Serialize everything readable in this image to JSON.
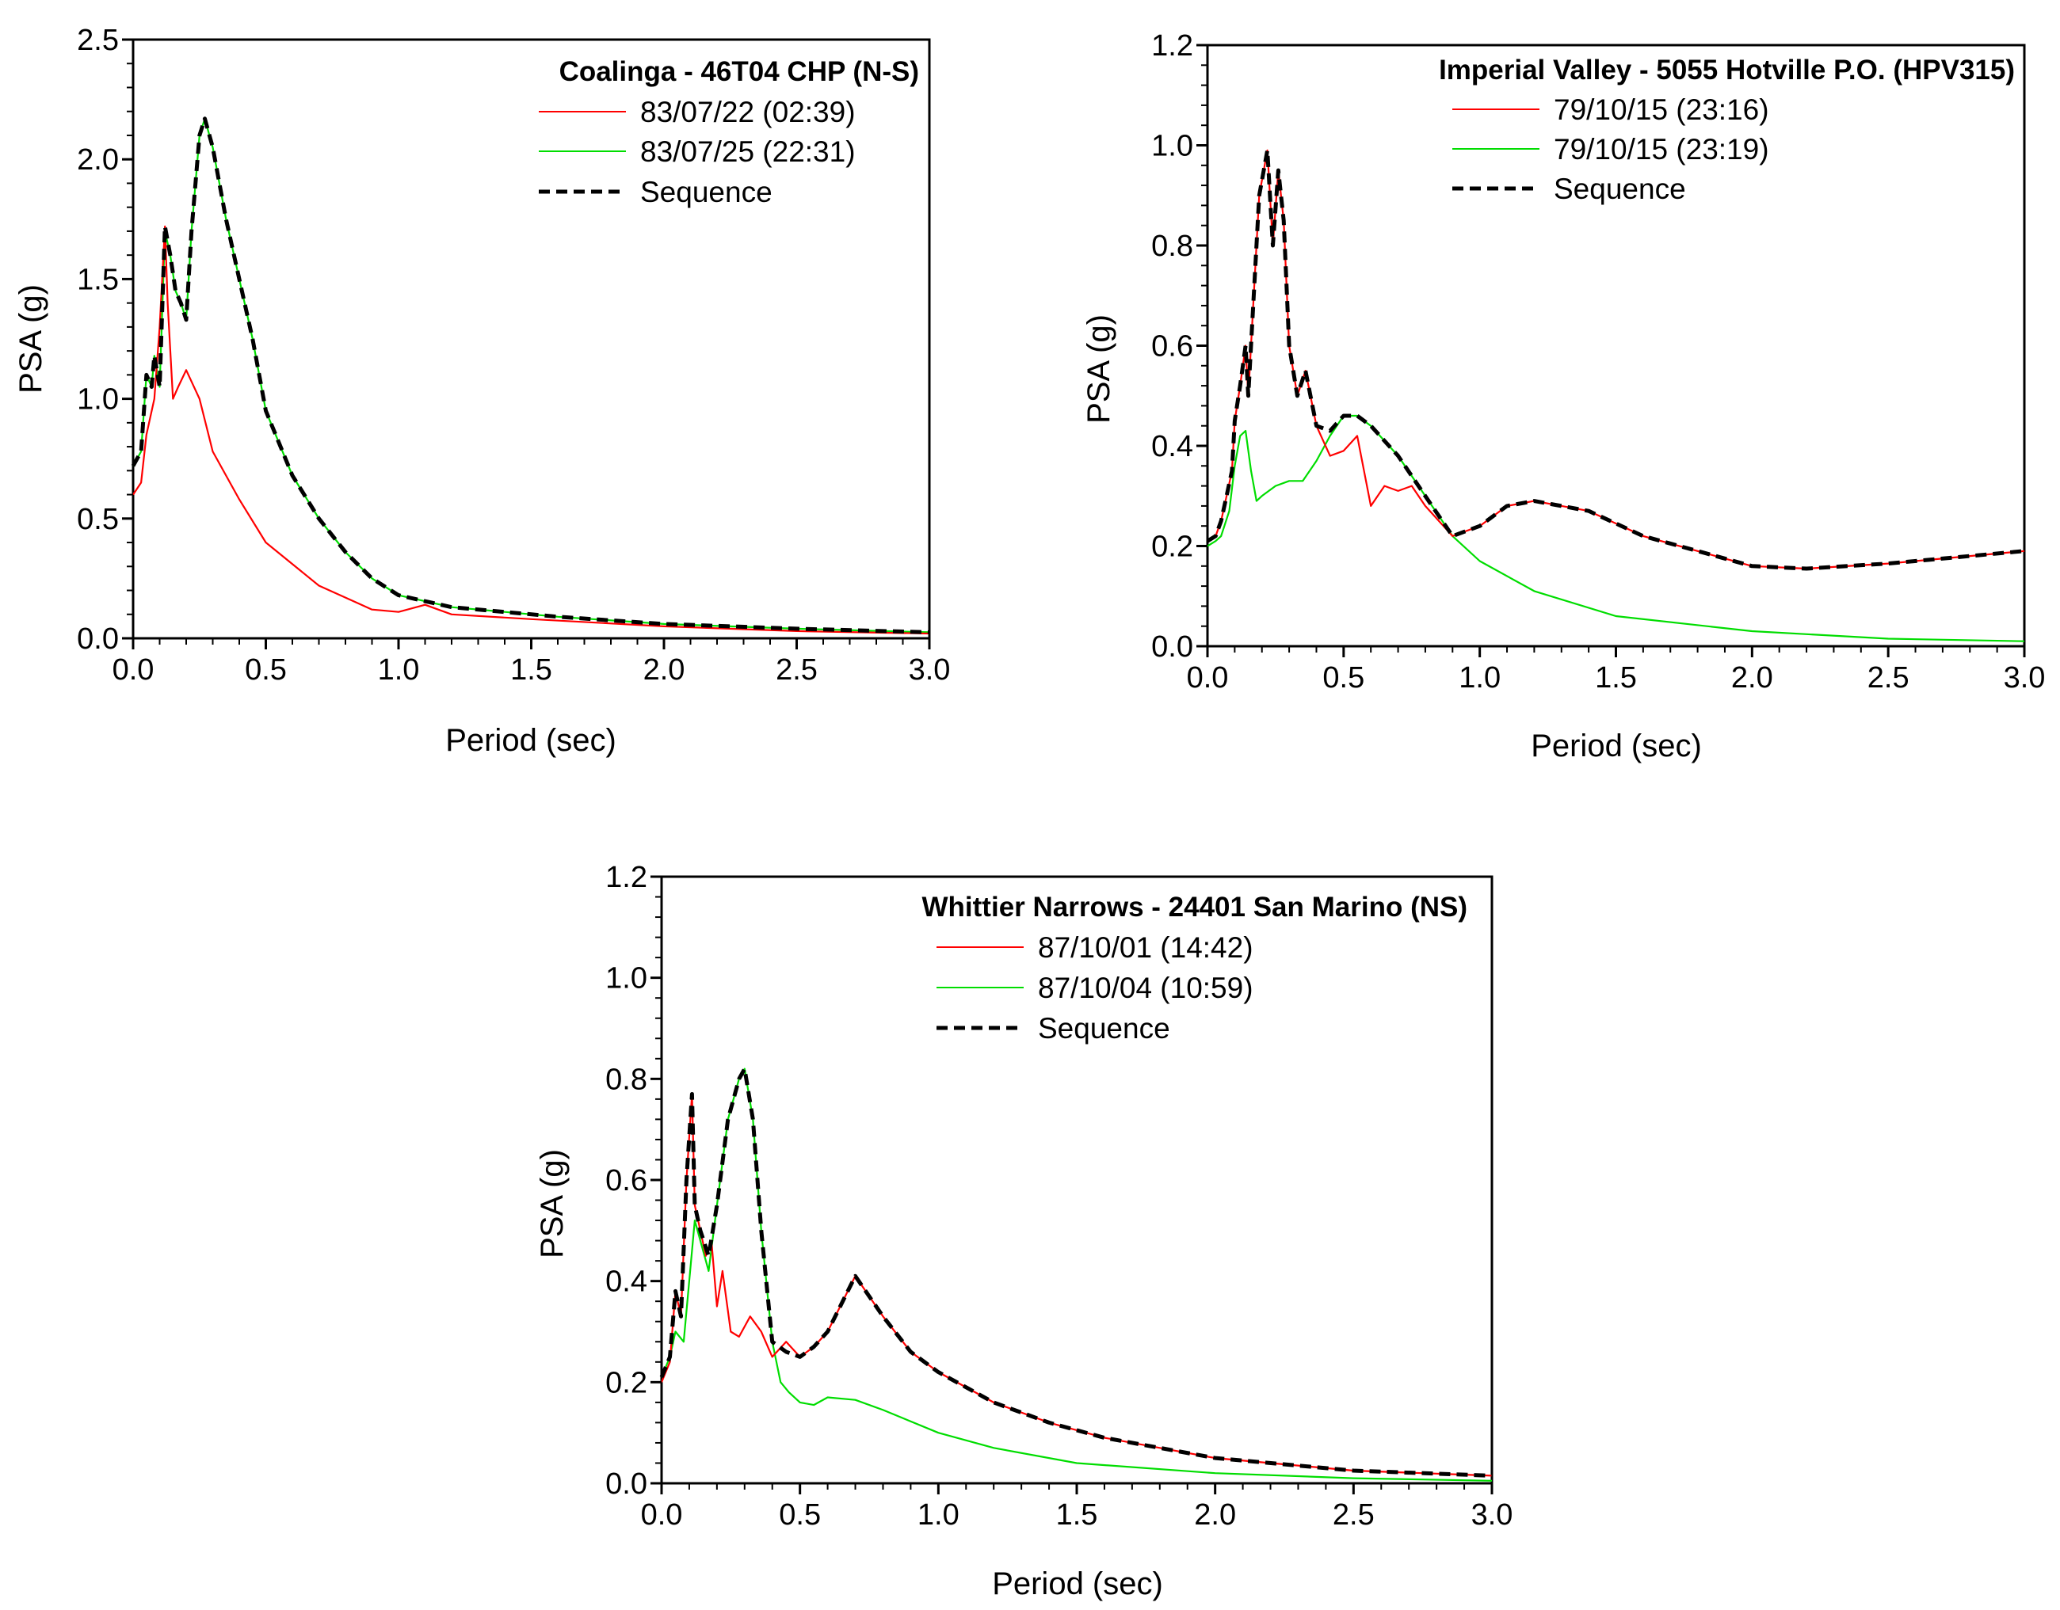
{
  "chart_data": [
    {
      "type": "line",
      "title": "Coalinga - 46T04 CHP (N-S)",
      "xlabel": "Period (sec)",
      "ylabel": "PSA (g)",
      "xlim": [
        0,
        3.0
      ],
      "ylim": [
        0,
        2.5
      ],
      "xticks": [
        "0.0",
        "0.5",
        "1.0",
        "1.5",
        "2.0",
        "2.5",
        "3.0"
      ],
      "yticks": [
        "0.0",
        "0.5",
        "1.0",
        "1.5",
        "2.0",
        "2.5"
      ],
      "legend_position": "top-right",
      "series": [
        {
          "name": "83/07/22 (02:39)",
          "color": "#ff0000",
          "dash": "solid",
          "x": [
            0.0,
            0.03,
            0.05,
            0.08,
            0.1,
            0.12,
            0.13,
            0.15,
            0.17,
            0.2,
            0.25,
            0.3,
            0.4,
            0.5,
            0.7,
            0.9,
            1.0,
            1.1,
            1.2,
            1.5,
            2.0,
            2.5,
            3.0
          ],
          "y": [
            0.6,
            0.65,
            0.85,
            1.0,
            1.3,
            1.72,
            1.4,
            1.0,
            1.05,
            1.12,
            1.0,
            0.78,
            0.58,
            0.4,
            0.22,
            0.12,
            0.11,
            0.14,
            0.1,
            0.08,
            0.05,
            0.03,
            0.02
          ]
        },
        {
          "name": "83/07/25 (22:31)",
          "color": "#00dd00",
          "dash": "solid",
          "x": [
            0.0,
            0.03,
            0.05,
            0.07,
            0.08,
            0.1,
            0.12,
            0.14,
            0.16,
            0.18,
            0.2,
            0.22,
            0.25,
            0.27,
            0.3,
            0.35,
            0.4,
            0.45,
            0.5,
            0.6,
            0.7,
            0.8,
            0.9,
            1.0,
            1.2,
            1.4,
            1.6,
            2.0,
            2.5,
            3.0
          ],
          "y": [
            0.72,
            0.78,
            1.1,
            1.05,
            1.18,
            1.05,
            1.7,
            1.6,
            1.45,
            1.4,
            1.33,
            1.7,
            2.1,
            2.17,
            2.05,
            1.75,
            1.5,
            1.25,
            0.95,
            0.68,
            0.5,
            0.36,
            0.25,
            0.18,
            0.13,
            0.11,
            0.09,
            0.06,
            0.04,
            0.025
          ]
        },
        {
          "name": "Sequence",
          "color": "#000000",
          "dash": "dashed",
          "x": [
            0.0,
            0.03,
            0.05,
            0.07,
            0.08,
            0.1,
            0.12,
            0.14,
            0.16,
            0.18,
            0.2,
            0.22,
            0.25,
            0.27,
            0.3,
            0.35,
            0.4,
            0.45,
            0.5,
            0.6,
            0.7,
            0.8,
            0.9,
            1.0,
            1.2,
            1.4,
            1.6,
            2.0,
            2.5,
            3.0
          ],
          "y": [
            0.72,
            0.78,
            1.1,
            1.05,
            1.18,
            1.05,
            1.72,
            1.6,
            1.45,
            1.4,
            1.33,
            1.7,
            2.1,
            2.17,
            2.05,
            1.75,
            1.5,
            1.25,
            0.95,
            0.68,
            0.5,
            0.36,
            0.25,
            0.18,
            0.13,
            0.11,
            0.09,
            0.06,
            0.04,
            0.025
          ]
        }
      ]
    },
    {
      "type": "line",
      "title": "Imperial Valley - 5055 Hotville P.O. (HPV315)",
      "xlabel": "Period (sec)",
      "ylabel": "PSA (g)",
      "xlim": [
        0,
        3.0
      ],
      "ylim": [
        0,
        1.2
      ],
      "xticks": [
        "0.0",
        "0.5",
        "1.0",
        "1.5",
        "2.0",
        "2.5",
        "3.0"
      ],
      "yticks": [
        "0.0",
        "0.2",
        "0.4",
        "0.6",
        "0.8",
        "1.0",
        "1.2"
      ],
      "legend_position": "top-right",
      "series": [
        {
          "name": "79/10/15 (23:16)",
          "color": "#ff0000",
          "dash": "solid",
          "x": [
            0.0,
            0.03,
            0.05,
            0.07,
            0.09,
            0.1,
            0.12,
            0.14,
            0.15,
            0.17,
            0.19,
            0.22,
            0.24,
            0.26,
            0.28,
            0.3,
            0.33,
            0.36,
            0.4,
            0.45,
            0.5,
            0.55,
            0.6,
            0.65,
            0.7,
            0.75,
            0.8,
            0.9,
            1.0,
            1.1,
            1.2,
            1.4,
            1.6,
            1.8,
            2.0,
            2.2,
            2.5,
            2.8,
            3.0
          ],
          "y": [
            0.21,
            0.22,
            0.25,
            0.3,
            0.35,
            0.45,
            0.52,
            0.6,
            0.5,
            0.7,
            0.9,
            0.99,
            0.8,
            0.95,
            0.85,
            0.6,
            0.5,
            0.55,
            0.44,
            0.38,
            0.39,
            0.42,
            0.28,
            0.32,
            0.31,
            0.32,
            0.28,
            0.22,
            0.24,
            0.28,
            0.29,
            0.27,
            0.22,
            0.19,
            0.16,
            0.155,
            0.165,
            0.18,
            0.19
          ]
        },
        {
          "name": "79/10/15 (23:19)",
          "color": "#00dd00",
          "dash": "solid",
          "x": [
            0.0,
            0.03,
            0.05,
            0.08,
            0.1,
            0.12,
            0.14,
            0.16,
            0.18,
            0.2,
            0.25,
            0.3,
            0.35,
            0.4,
            0.45,
            0.5,
            0.55,
            0.6,
            0.7,
            0.8,
            0.9,
            1.0,
            1.2,
            1.5,
            2.0,
            2.5,
            3.0
          ],
          "y": [
            0.2,
            0.21,
            0.22,
            0.27,
            0.36,
            0.42,
            0.43,
            0.35,
            0.29,
            0.3,
            0.32,
            0.33,
            0.33,
            0.37,
            0.42,
            0.46,
            0.46,
            0.44,
            0.38,
            0.3,
            0.22,
            0.17,
            0.11,
            0.06,
            0.03,
            0.015,
            0.01
          ]
        },
        {
          "name": "Sequence",
          "color": "#000000",
          "dash": "dashed",
          "x": [
            0.0,
            0.03,
            0.05,
            0.07,
            0.09,
            0.1,
            0.12,
            0.14,
            0.15,
            0.17,
            0.19,
            0.22,
            0.24,
            0.26,
            0.28,
            0.3,
            0.33,
            0.36,
            0.4,
            0.45,
            0.5,
            0.55,
            0.6,
            0.7,
            0.8,
            0.9,
            1.0,
            1.1,
            1.2,
            1.4,
            1.6,
            1.8,
            2.0,
            2.2,
            2.5,
            2.8,
            3.0
          ],
          "y": [
            0.21,
            0.22,
            0.25,
            0.3,
            0.35,
            0.45,
            0.52,
            0.6,
            0.5,
            0.7,
            0.9,
            0.99,
            0.8,
            0.95,
            0.85,
            0.6,
            0.5,
            0.55,
            0.44,
            0.43,
            0.46,
            0.46,
            0.44,
            0.38,
            0.3,
            0.22,
            0.24,
            0.28,
            0.29,
            0.27,
            0.22,
            0.19,
            0.16,
            0.155,
            0.165,
            0.18,
            0.19
          ]
        }
      ]
    },
    {
      "type": "line",
      "title": "Whittier Narrows - 24401 San Marino (NS)",
      "xlabel": "Period (sec)",
      "ylabel": "PSA (g)",
      "xlim": [
        0,
        3.0
      ],
      "ylim": [
        0,
        1.2
      ],
      "xticks": [
        "0.0",
        "0.5",
        "1.0",
        "1.5",
        "2.0",
        "2.5",
        "3.0"
      ],
      "yticks": [
        "0.0",
        "0.2",
        "0.4",
        "0.6",
        "0.8",
        "1.0",
        "1.2"
      ],
      "legend_position": "top-right",
      "series": [
        {
          "name": "87/10/01 (14:42)",
          "color": "#ff0000",
          "dash": "solid",
          "x": [
            0.0,
            0.03,
            0.05,
            0.07,
            0.09,
            0.11,
            0.12,
            0.14,
            0.16,
            0.18,
            0.2,
            0.22,
            0.25,
            0.28,
            0.32,
            0.36,
            0.4,
            0.45,
            0.5,
            0.55,
            0.6,
            0.7,
            0.8,
            0.9,
            1.0,
            1.2,
            1.4,
            1.6,
            2.0,
            2.5,
            3.0
          ],
          "y": [
            0.2,
            0.24,
            0.38,
            0.33,
            0.6,
            0.77,
            0.55,
            0.5,
            0.45,
            0.48,
            0.35,
            0.42,
            0.3,
            0.29,
            0.33,
            0.3,
            0.25,
            0.28,
            0.25,
            0.27,
            0.3,
            0.41,
            0.33,
            0.26,
            0.22,
            0.16,
            0.12,
            0.09,
            0.05,
            0.025,
            0.015
          ]
        },
        {
          "name": "87/10/04 (10:59)",
          "color": "#00dd00",
          "dash": "solid",
          "x": [
            0.0,
            0.03,
            0.05,
            0.08,
            0.1,
            0.12,
            0.14,
            0.17,
            0.2,
            0.24,
            0.28,
            0.3,
            0.33,
            0.36,
            0.4,
            0.43,
            0.46,
            0.5,
            0.55,
            0.6,
            0.7,
            0.8,
            1.0,
            1.2,
            1.5,
            2.0,
            2.5,
            3.0
          ],
          "y": [
            0.21,
            0.25,
            0.3,
            0.28,
            0.4,
            0.52,
            0.48,
            0.42,
            0.55,
            0.72,
            0.8,
            0.82,
            0.72,
            0.5,
            0.28,
            0.2,
            0.18,
            0.16,
            0.155,
            0.17,
            0.165,
            0.145,
            0.1,
            0.07,
            0.04,
            0.02,
            0.01,
            0.005
          ]
        },
        {
          "name": "Sequence",
          "color": "#000000",
          "dash": "dashed",
          "x": [
            0.0,
            0.03,
            0.05,
            0.07,
            0.09,
            0.11,
            0.12,
            0.14,
            0.17,
            0.2,
            0.24,
            0.28,
            0.3,
            0.33,
            0.36,
            0.4,
            0.45,
            0.5,
            0.55,
            0.6,
            0.7,
            0.8,
            0.9,
            1.0,
            1.2,
            1.4,
            1.6,
            2.0,
            2.5,
            3.0
          ],
          "y": [
            0.21,
            0.25,
            0.38,
            0.33,
            0.6,
            0.77,
            0.55,
            0.5,
            0.45,
            0.55,
            0.72,
            0.8,
            0.82,
            0.72,
            0.5,
            0.28,
            0.26,
            0.25,
            0.27,
            0.3,
            0.41,
            0.33,
            0.26,
            0.22,
            0.16,
            0.12,
            0.09,
            0.05,
            0.025,
            0.015
          ]
        }
      ]
    }
  ]
}
